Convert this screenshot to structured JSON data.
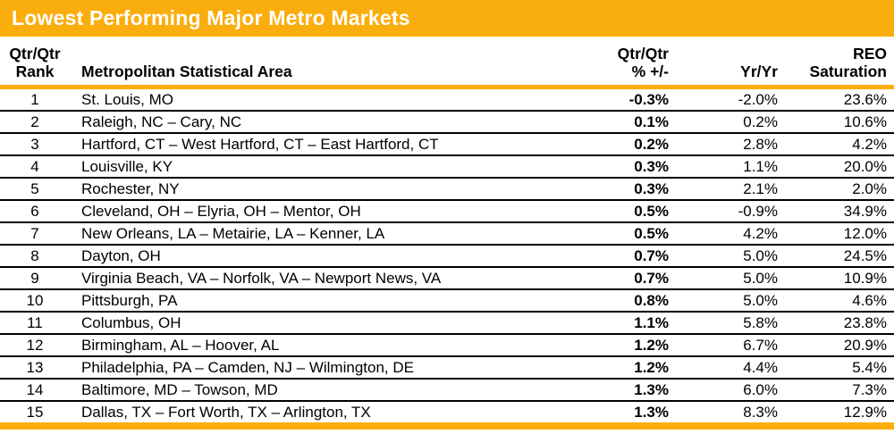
{
  "title": "Lowest Performing Major Metro Markets",
  "colors": {
    "accent_orange": "#FAAE0D",
    "title_text": "#FFFFFF",
    "body_text": "#000000"
  },
  "table": {
    "headers": {
      "rank": {
        "line1": "Qtr/Qtr",
        "line2": "Rank"
      },
      "msa": "Metropolitan Statistical Area",
      "qtr": {
        "line1": "Qtr/Qtr",
        "line2": "% +/-"
      },
      "yr": "Yr/Yr",
      "reo": {
        "line1": "REO",
        "line2": "Saturation"
      }
    },
    "rows": [
      {
        "rank": "1",
        "msa": "St. Louis, MO",
        "qtr": "-0.3%",
        "yr": "-2.0%",
        "reo": "23.6%"
      },
      {
        "rank": "2",
        "msa": "Raleigh, NC – Cary, NC",
        "qtr": "0.1%",
        "yr": "0.2%",
        "reo": "10.6%"
      },
      {
        "rank": "3",
        "msa": "Hartford, CT – West Hartford, CT – East Hartford, CT",
        "qtr": "0.2%",
        "yr": "2.8%",
        "reo": "4.2%"
      },
      {
        "rank": "4",
        "msa": "Louisville, KY",
        "qtr": "0.3%",
        "yr": "1.1%",
        "reo": "20.0%"
      },
      {
        "rank": "5",
        "msa": "Rochester, NY",
        "qtr": "0.3%",
        "yr": "2.1%",
        "reo": "2.0%"
      },
      {
        "rank": "6",
        "msa": "Cleveland, OH – Elyria, OH – Mentor, OH",
        "qtr": "0.5%",
        "yr": "-0.9%",
        "reo": "34.9%"
      },
      {
        "rank": "7",
        "msa": "New Orleans, LA – Metairie, LA – Kenner, LA",
        "qtr": "0.5%",
        "yr": "4.2%",
        "reo": "12.0%"
      },
      {
        "rank": "8",
        "msa": "Dayton, OH",
        "qtr": "0.7%",
        "yr": "5.0%",
        "reo": "24.5%"
      },
      {
        "rank": "9",
        "msa": "Virginia Beach, VA – Norfolk, VA – Newport News, VA",
        "qtr": "0.7%",
        "yr": "5.0%",
        "reo": "10.9%"
      },
      {
        "rank": "10",
        "msa": "Pittsburgh, PA",
        "qtr": "0.8%",
        "yr": "5.0%",
        "reo": "4.6%"
      },
      {
        "rank": "11",
        "msa": "Columbus, OH",
        "qtr": "1.1%",
        "yr": "5.8%",
        "reo": "23.8%"
      },
      {
        "rank": "12",
        "msa": "Birmingham, AL – Hoover, AL",
        "qtr": "1.2%",
        "yr": "6.7%",
        "reo": "20.9%"
      },
      {
        "rank": "13",
        "msa": "Philadelphia, PA – Camden, NJ – Wilmington, DE",
        "qtr": "1.2%",
        "yr": "4.4%",
        "reo": "5.4%"
      },
      {
        "rank": "14",
        "msa": "Baltimore, MD – Towson, MD",
        "qtr": "1.3%",
        "yr": "6.0%",
        "reo": "7.3%"
      },
      {
        "rank": "15",
        "msa": "Dallas, TX – Fort Worth, TX – Arlington, TX",
        "qtr": "1.3%",
        "yr": "8.3%",
        "reo": "12.9%"
      }
    ]
  }
}
